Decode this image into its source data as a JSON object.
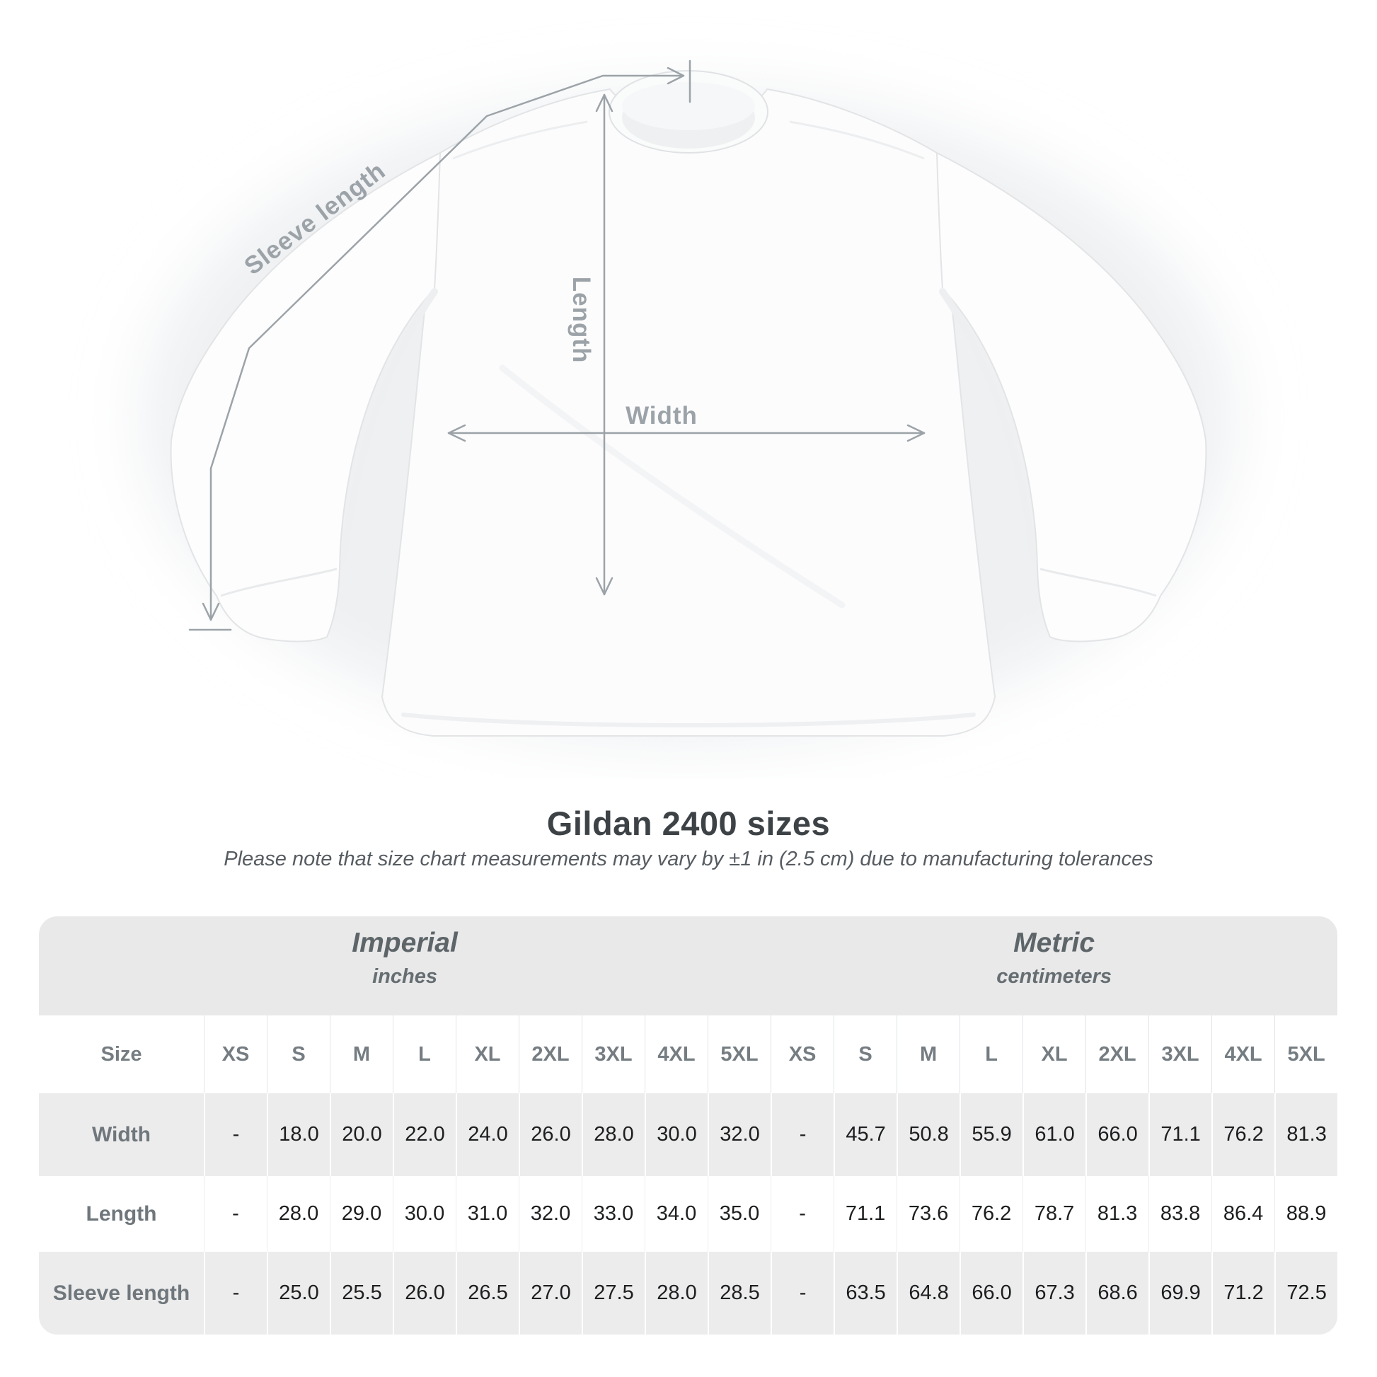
{
  "page": {
    "background": "#ffffff"
  },
  "diagram": {
    "sleeve_length_label": "Sleeve length",
    "length_label": "Length",
    "width_label": "Width"
  },
  "chart_data": {
    "type": "table",
    "title": "Gildan 2400 sizes",
    "subtitle": "Please note that size chart measurements may vary by ±1 in (2.5 cm) due to manufacturing tolerances",
    "row_header": "Size",
    "column_groups": [
      {
        "label": "Imperial",
        "unit": "inches",
        "columns": [
          "XS",
          "S",
          "M",
          "L",
          "XL",
          "2XL",
          "3XL",
          "4XL",
          "5XL"
        ]
      },
      {
        "label": "Metric",
        "unit": "centimeters",
        "columns": [
          "XS",
          "S",
          "M",
          "L",
          "XL",
          "2XL",
          "3XL",
          "4XL",
          "5XL"
        ]
      }
    ],
    "rows": [
      {
        "label": "Width",
        "imperial": [
          "-",
          "18.0",
          "20.0",
          "22.0",
          "24.0",
          "26.0",
          "28.0",
          "30.0",
          "32.0"
        ],
        "metric": [
          "-",
          "45.7",
          "50.8",
          "55.9",
          "61.0",
          "66.0",
          "71.1",
          "76.2",
          "81.3"
        ]
      },
      {
        "label": "Length",
        "imperial": [
          "-",
          "28.0",
          "29.0",
          "30.0",
          "31.0",
          "32.0",
          "33.0",
          "34.0",
          "35.0"
        ],
        "metric": [
          "-",
          "71.1",
          "73.6",
          "76.2",
          "78.7",
          "81.3",
          "83.8",
          "86.4",
          "88.9"
        ]
      },
      {
        "label": "Sleeve length",
        "imperial": [
          "-",
          "25.0",
          "25.5",
          "26.0",
          "26.5",
          "27.0",
          "27.5",
          "28.0",
          "28.5"
        ],
        "metric": [
          "-",
          "63.5",
          "64.8",
          "66.0",
          "67.3",
          "68.6",
          "69.9",
          "71.2",
          "72.5"
        ]
      }
    ]
  },
  "colors": {
    "measure": "#9ca3a8",
    "title": "#3d4246",
    "subtitle": "#565c61",
    "section": "#5d6569",
    "section_unit": "#666e72",
    "header_text": "#757d82",
    "row_label": "#6f777c",
    "value_text": "#1c1e1f",
    "band_bg": "#e9e9ea",
    "row_alt_bg": "#ececed"
  }
}
